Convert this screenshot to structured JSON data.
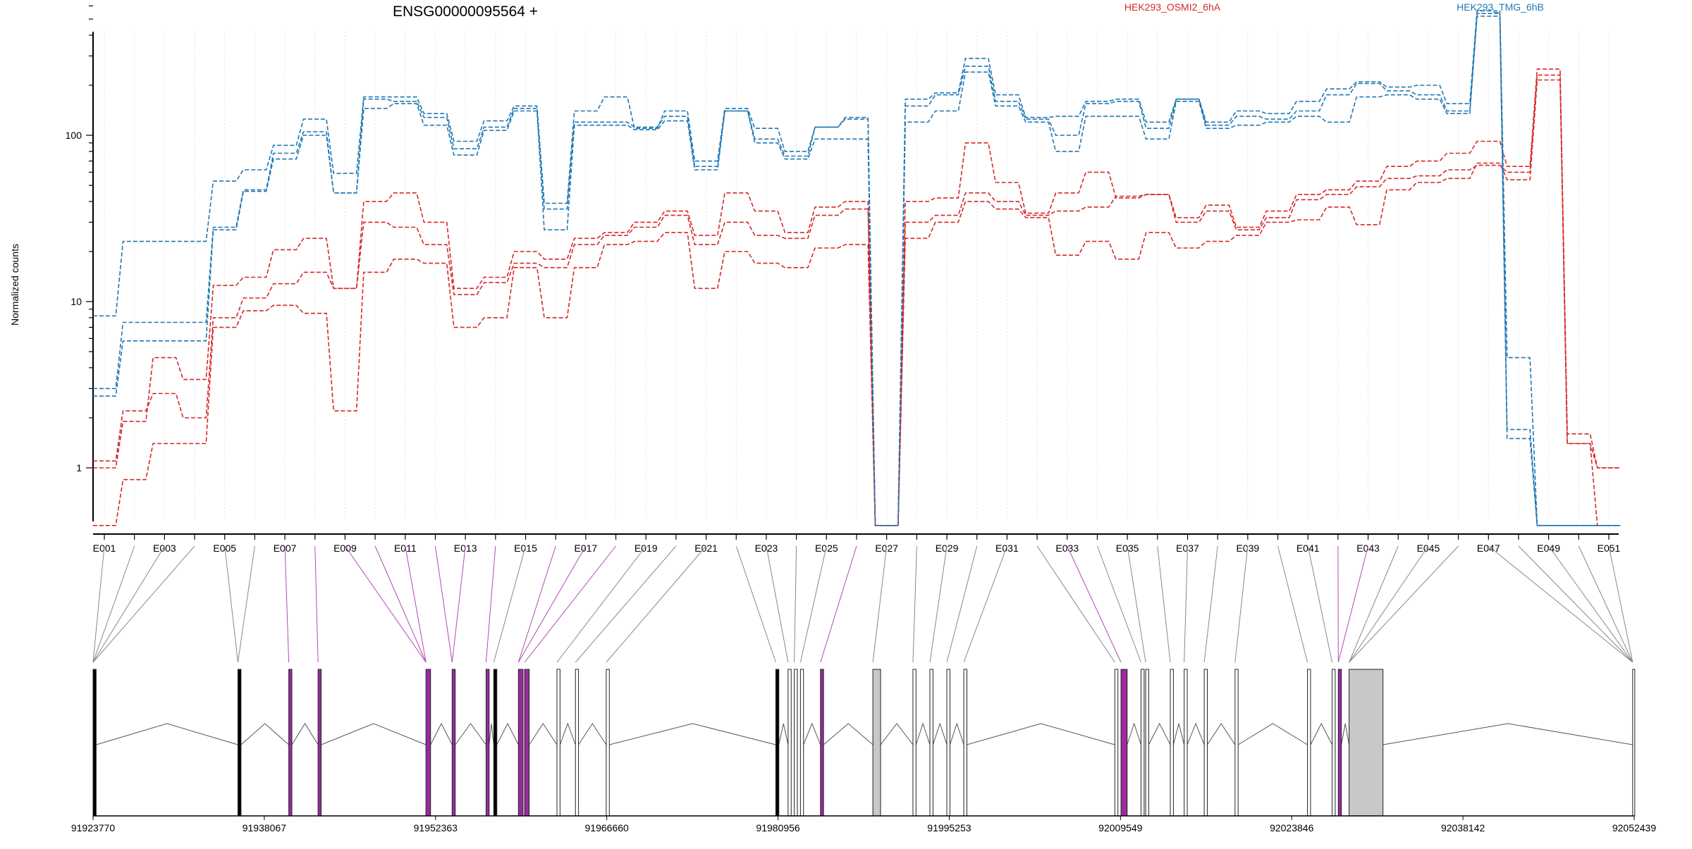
{
  "chart_data": {
    "type": "line",
    "title": "ENSG00000095564 +",
    "ylabel": "Normalized counts",
    "xlabel": "",
    "yscale": "log",
    "ylim": [
      0.45,
      800
    ],
    "y_ticks": [
      "1",
      "10",
      "100"
    ],
    "grid": "vertical dotted",
    "legend_placement": "top",
    "exon_labels": [
      "E001",
      "E003",
      "E005",
      "E007",
      "E009",
      "E011",
      "E013",
      "E015",
      "E017",
      "E019",
      "E021",
      "E023",
      "E025",
      "E027",
      "E029",
      "E031",
      "E033",
      "E035",
      "E037",
      "E039",
      "E041",
      "E043",
      "E045",
      "E047",
      "E049",
      "E051"
    ],
    "series": [
      {
        "name": "HEK293_OSMI2_6hA",
        "color": "#d62728",
        "values": [
          1.1,
          2.2,
          2.8,
          2.0,
          8.0,
          10.5,
          12.8,
          15.0,
          12.0,
          40.0,
          45.0,
          30.0,
          12.0,
          14.0,
          20.0,
          18.0,
          24.0,
          26.0,
          30.0,
          35.0,
          25.0,
          45.0,
          35.0,
          26.0,
          37.0,
          40.0,
          0.45,
          40.0,
          42.0,
          90.0,
          52.0,
          34.0,
          45.0,
          60.0,
          42.0,
          44.0,
          32.0,
          38.0,
          28.0,
          35.0,
          44.0,
          47.0,
          53.0,
          65.0,
          70.0,
          78.0,
          92.0,
          65.0,
          250.0,
          1.6,
          1.0
        ]
      },
      {
        "name": "",
        "color": "#d62728",
        "values": [
          1.0,
          1.9,
          4.6,
          3.4,
          12.5,
          14.0,
          20.5,
          24.0,
          12.0,
          30.0,
          28.0,
          22.0,
          11.0,
          13.0,
          17.0,
          16.0,
          22.0,
          25.0,
          28.0,
          33.0,
          22.0,
          30.0,
          25.0,
          24.0,
          33.0,
          36.0,
          0.45,
          30.0,
          33.0,
          45.0,
          40.0,
          33.0,
          35.0,
          37.0,
          43.0,
          44.0,
          30.0,
          35.0,
          27.0,
          32.0,
          41.0,
          44.0,
          49.0,
          55.0,
          57.0,
          62.0,
          66.0,
          60.0,
          230.0,
          1.4,
          1.0
        ]
      },
      {
        "name": "",
        "color": "#d62728",
        "values": [
          0.45,
          0.85,
          1.4,
          1.4,
          7.0,
          8.8,
          9.5,
          8.5,
          2.2,
          15.0,
          18.0,
          17.0,
          7.0,
          8.0,
          16.0,
          8.0,
          16.0,
          22.0,
          23.0,
          26.0,
          12.0,
          20.0,
          17.0,
          16.0,
          21.0,
          22.0,
          0.45,
          24.0,
          30.0,
          40.0,
          36.0,
          32.0,
          19.0,
          23.0,
          18.0,
          26.0,
          21.0,
          23.0,
          25.0,
          30.0,
          31.0,
          37.0,
          29.0,
          47.0,
          52.0,
          55.0,
          68.0,
          54.0,
          215.0,
          1.4,
          0.45
        ]
      },
      {
        "name": "HEK293_TMG_6hB",
        "color": "#1f77b4",
        "values": [
          8.2,
          23.0,
          23.0,
          23.0,
          53.0,
          62.0,
          87.0,
          125.0,
          59.0,
          170.0,
          170.0,
          135.0,
          92.0,
          122.0,
          150.0,
          39.0,
          140.0,
          170.0,
          110.0,
          140.0,
          70.0,
          145.0,
          110.0,
          80.0,
          112.0,
          128.0,
          0.45,
          165.0,
          180.0,
          290.0,
          175.0,
          128.0,
          130.0,
          160.0,
          165.0,
          120.0,
          165.0,
          120.0,
          140.0,
          135.0,
          160.0,
          190.0,
          210.0,
          195.0,
          200.0,
          155.0,
          560.0,
          4.6,
          0.45,
          0.45,
          0.45
        ]
      },
      {
        "name": "",
        "color": "#1f77b4",
        "values": [
          3.0,
          7.5,
          7.5,
          7.5,
          28.0,
          47.0,
          78.0,
          105.0,
          45.0,
          165.0,
          160.0,
          128.0,
          83.0,
          112.0,
          145.0,
          36.0,
          120.0,
          120.0,
          112.0,
          130.0,
          65.0,
          140.0,
          95.0,
          75.0,
          112.0,
          125.0,
          0.45,
          150.0,
          175.0,
          260.0,
          160.0,
          125.0,
          100.0,
          155.0,
          160.0,
          110.0,
          165.0,
          115.0,
          130.0,
          125.0,
          140.0,
          175.0,
          205.0,
          185.0,
          175.0,
          140.0,
          540.0,
          1.7,
          0.45,
          0.45,
          0.45
        ]
      },
      {
        "name": "",
        "color": "#1f77b4",
        "values": [
          2.7,
          5.8,
          5.8,
          5.8,
          27.0,
          46.0,
          72.0,
          100.0,
          45.0,
          145.0,
          155.0,
          115.0,
          76.0,
          107.0,
          140.0,
          27.0,
          115.0,
          115.0,
          108.0,
          122.0,
          62.0,
          140.0,
          90.0,
          72.0,
          95.0,
          95.0,
          0.45,
          120.0,
          140.0,
          240.0,
          150.0,
          120.0,
          80.0,
          130.0,
          130.0,
          95.0,
          160.0,
          110.0,
          115.0,
          120.0,
          130.0,
          120.0,
          170.0,
          175.0,
          165.0,
          135.0,
          520.0,
          1.5,
          0.45,
          0.45,
          0.45
        ]
      }
    ],
    "genome_ticks": [
      "91923770",
      "91938067",
      "91952363",
      "91966660",
      "91980956",
      "91995253",
      "92009549",
      "92023846",
      "92038142",
      "92052439"
    ]
  }
}
